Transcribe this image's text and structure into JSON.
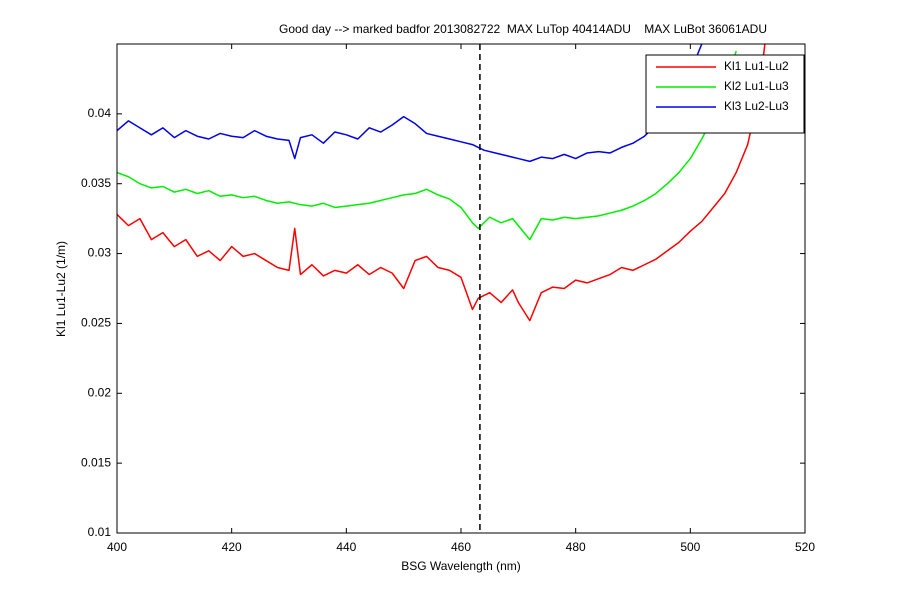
{
  "chart_data": {
    "type": "line",
    "title": "Good day --> marked badfor 2013082722  MAX LuTop 40414ADU    MAX LuBot 36061ADU",
    "xlabel": "BSG Wavelength (nm)",
    "ylabel": "Kl1 Lu1-Lu2 (1/m)",
    "xlim": [
      400,
      520
    ],
    "ylim": [
      0.01,
      0.045
    ],
    "xticks": [
      400,
      420,
      440,
      460,
      480,
      500,
      520
    ],
    "yticks": [
      0.01,
      0.015,
      0.02,
      0.025,
      0.03,
      0.035,
      0.04
    ],
    "vline": 463.3,
    "legend": "upper right",
    "series": [
      {
        "name": "Kl1 Lu1-Lu2",
        "color": "#ff0000",
        "x": [
          400,
          402,
          404,
          406,
          408,
          410,
          412,
          414,
          416,
          418,
          420,
          422,
          424,
          426,
          428,
          430,
          431,
          432,
          434,
          436,
          438,
          440,
          442,
          444,
          446,
          448,
          450,
          452,
          454,
          456,
          458,
          460,
          462,
          463,
          465,
          467,
          469,
          470,
          472,
          474,
          476,
          478,
          480,
          482,
          484,
          486,
          488,
          490,
          492,
          494,
          496,
          498,
          500,
          502,
          504,
          506,
          508,
          510,
          512,
          513
        ],
        "values": [
          0.0328,
          0.032,
          0.0325,
          0.031,
          0.0315,
          0.0305,
          0.031,
          0.0298,
          0.0302,
          0.0295,
          0.0305,
          0.0298,
          0.03,
          0.0295,
          0.029,
          0.0288,
          0.0318,
          0.0285,
          0.0292,
          0.0284,
          0.0288,
          0.0286,
          0.0292,
          0.0285,
          0.029,
          0.0286,
          0.0275,
          0.0295,
          0.0298,
          0.029,
          0.0288,
          0.0283,
          0.026,
          0.0268,
          0.0272,
          0.0265,
          0.0274,
          0.0265,
          0.0252,
          0.0272,
          0.0276,
          0.0275,
          0.0281,
          0.0279,
          0.0282,
          0.0285,
          0.029,
          0.0288,
          0.0292,
          0.0296,
          0.0302,
          0.0308,
          0.0316,
          0.0323,
          0.0333,
          0.0343,
          0.0358,
          0.0378,
          0.0415,
          0.045
        ]
      },
      {
        "name": "Kl2 Lu1-Lu3",
        "color": "#00ee00",
        "x": [
          400,
          402,
          404,
          406,
          408,
          410,
          412,
          414,
          416,
          418,
          420,
          422,
          424,
          426,
          428,
          430,
          432,
          434,
          436,
          438,
          440,
          442,
          444,
          446,
          448,
          450,
          452,
          454,
          456,
          458,
          460,
          462,
          463,
          465,
          467,
          469,
          470,
          472,
          474,
          476,
          478,
          480,
          482,
          484,
          486,
          488,
          490,
          492,
          494,
          496,
          498,
          500,
          502,
          504,
          506,
          508
        ],
        "values": [
          0.0358,
          0.0355,
          0.035,
          0.0347,
          0.0348,
          0.0344,
          0.0346,
          0.0343,
          0.0345,
          0.0341,
          0.0342,
          0.034,
          0.0341,
          0.0338,
          0.0336,
          0.0337,
          0.0335,
          0.0334,
          0.0336,
          0.0333,
          0.0334,
          0.0335,
          0.0336,
          0.0338,
          0.034,
          0.0342,
          0.0343,
          0.0346,
          0.0342,
          0.0339,
          0.0333,
          0.0322,
          0.0318,
          0.0326,
          0.0322,
          0.0325,
          0.032,
          0.031,
          0.0325,
          0.0324,
          0.0326,
          0.0325,
          0.0326,
          0.0327,
          0.0329,
          0.0331,
          0.0334,
          0.0338,
          0.0343,
          0.035,
          0.0358,
          0.0368,
          0.0382,
          0.0398,
          0.0418,
          0.0445
        ]
      },
      {
        "name": "Kl3 Lu2-Lu3",
        "color": "#0000ee",
        "x": [
          400,
          402,
          404,
          406,
          408,
          410,
          412,
          414,
          416,
          418,
          420,
          422,
          424,
          426,
          428,
          430,
          431,
          432,
          434,
          436,
          438,
          440,
          442,
          444,
          446,
          448,
          450,
          452,
          454,
          456,
          458,
          460,
          462,
          464,
          466,
          468,
          470,
          472,
          474,
          476,
          478,
          480,
          482,
          484,
          486,
          488,
          490,
          492,
          494,
          496,
          498,
          500,
          502
        ],
        "values": [
          0.0388,
          0.0395,
          0.039,
          0.0385,
          0.039,
          0.0383,
          0.0388,
          0.0384,
          0.0382,
          0.0386,
          0.0384,
          0.0383,
          0.0388,
          0.0384,
          0.0382,
          0.0381,
          0.0368,
          0.0383,
          0.0385,
          0.0379,
          0.0387,
          0.0385,
          0.0382,
          0.039,
          0.0387,
          0.0392,
          0.0398,
          0.0393,
          0.0386,
          0.0384,
          0.0382,
          0.038,
          0.0378,
          0.0374,
          0.0372,
          0.037,
          0.0368,
          0.0366,
          0.0369,
          0.0368,
          0.0371,
          0.0368,
          0.0372,
          0.0373,
          0.0372,
          0.0376,
          0.0379,
          0.0384,
          0.0392,
          0.0402,
          0.0415,
          0.043,
          0.045
        ]
      }
    ]
  }
}
